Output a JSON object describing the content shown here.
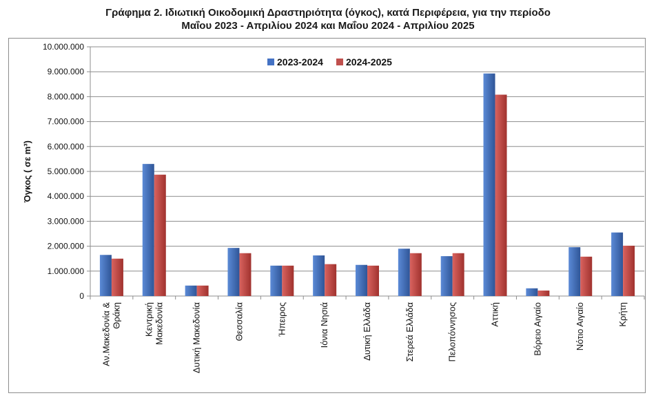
{
  "chart_data": {
    "type": "bar",
    "title_line1": "Γράφημα 2.  Ιδιωτική Οικοδομική Δραστηριότητα (όγκος), κατά Περιφέρεια, για την περίοδο",
    "title_line2": "Μαΐου 2023 - Απριλίου 2024 και Μαΐου 2024 - Απριλίου 2025",
    "ylabel": "Όγκος ( σε m³)",
    "ylim": [
      0,
      10000000
    ],
    "yticks": [
      "0",
      "1.000.000",
      "2.000.000",
      "3.000.000",
      "4.000.000",
      "5.000.000",
      "6.000.000",
      "7.000.000",
      "8.000.000",
      "9.000.000",
      "10.000.000"
    ],
    "grid": true,
    "legend_position": "top-center",
    "categories": [
      [
        "Αν.Μακεδονία &",
        "Θράκη"
      ],
      [
        "Κεντρική",
        "Μακεδονία"
      ],
      [
        "Δυτική Μακεδονία"
      ],
      [
        "Θεσσαλία"
      ],
      [
        "Ήπειρος"
      ],
      [
        "Ιόνια Νησιά"
      ],
      [
        "Δυτική Ελλάδα"
      ],
      [
        "Στερεά Ελλάδα"
      ],
      [
        "Πελοπόννησος"
      ],
      [
        "Αττική"
      ],
      [
        "Βόρειο Αιγαίο"
      ],
      [
        "Νότιο Αιγαίο"
      ],
      [
        "Κρήτη"
      ]
    ],
    "series": [
      {
        "name": "2023-2024",
        "color": "#4472c4",
        "values": [
          1650000,
          5300000,
          420000,
          1930000,
          1220000,
          1630000,
          1250000,
          1900000,
          1600000,
          8930000,
          310000,
          1960000,
          2550000
        ]
      },
      {
        "name": "2024-2025",
        "color": "#c0504d",
        "values": [
          1500000,
          4870000,
          420000,
          1720000,
          1220000,
          1280000,
          1220000,
          1720000,
          1720000,
          8080000,
          220000,
          1580000,
          2020000
        ]
      }
    ]
  }
}
